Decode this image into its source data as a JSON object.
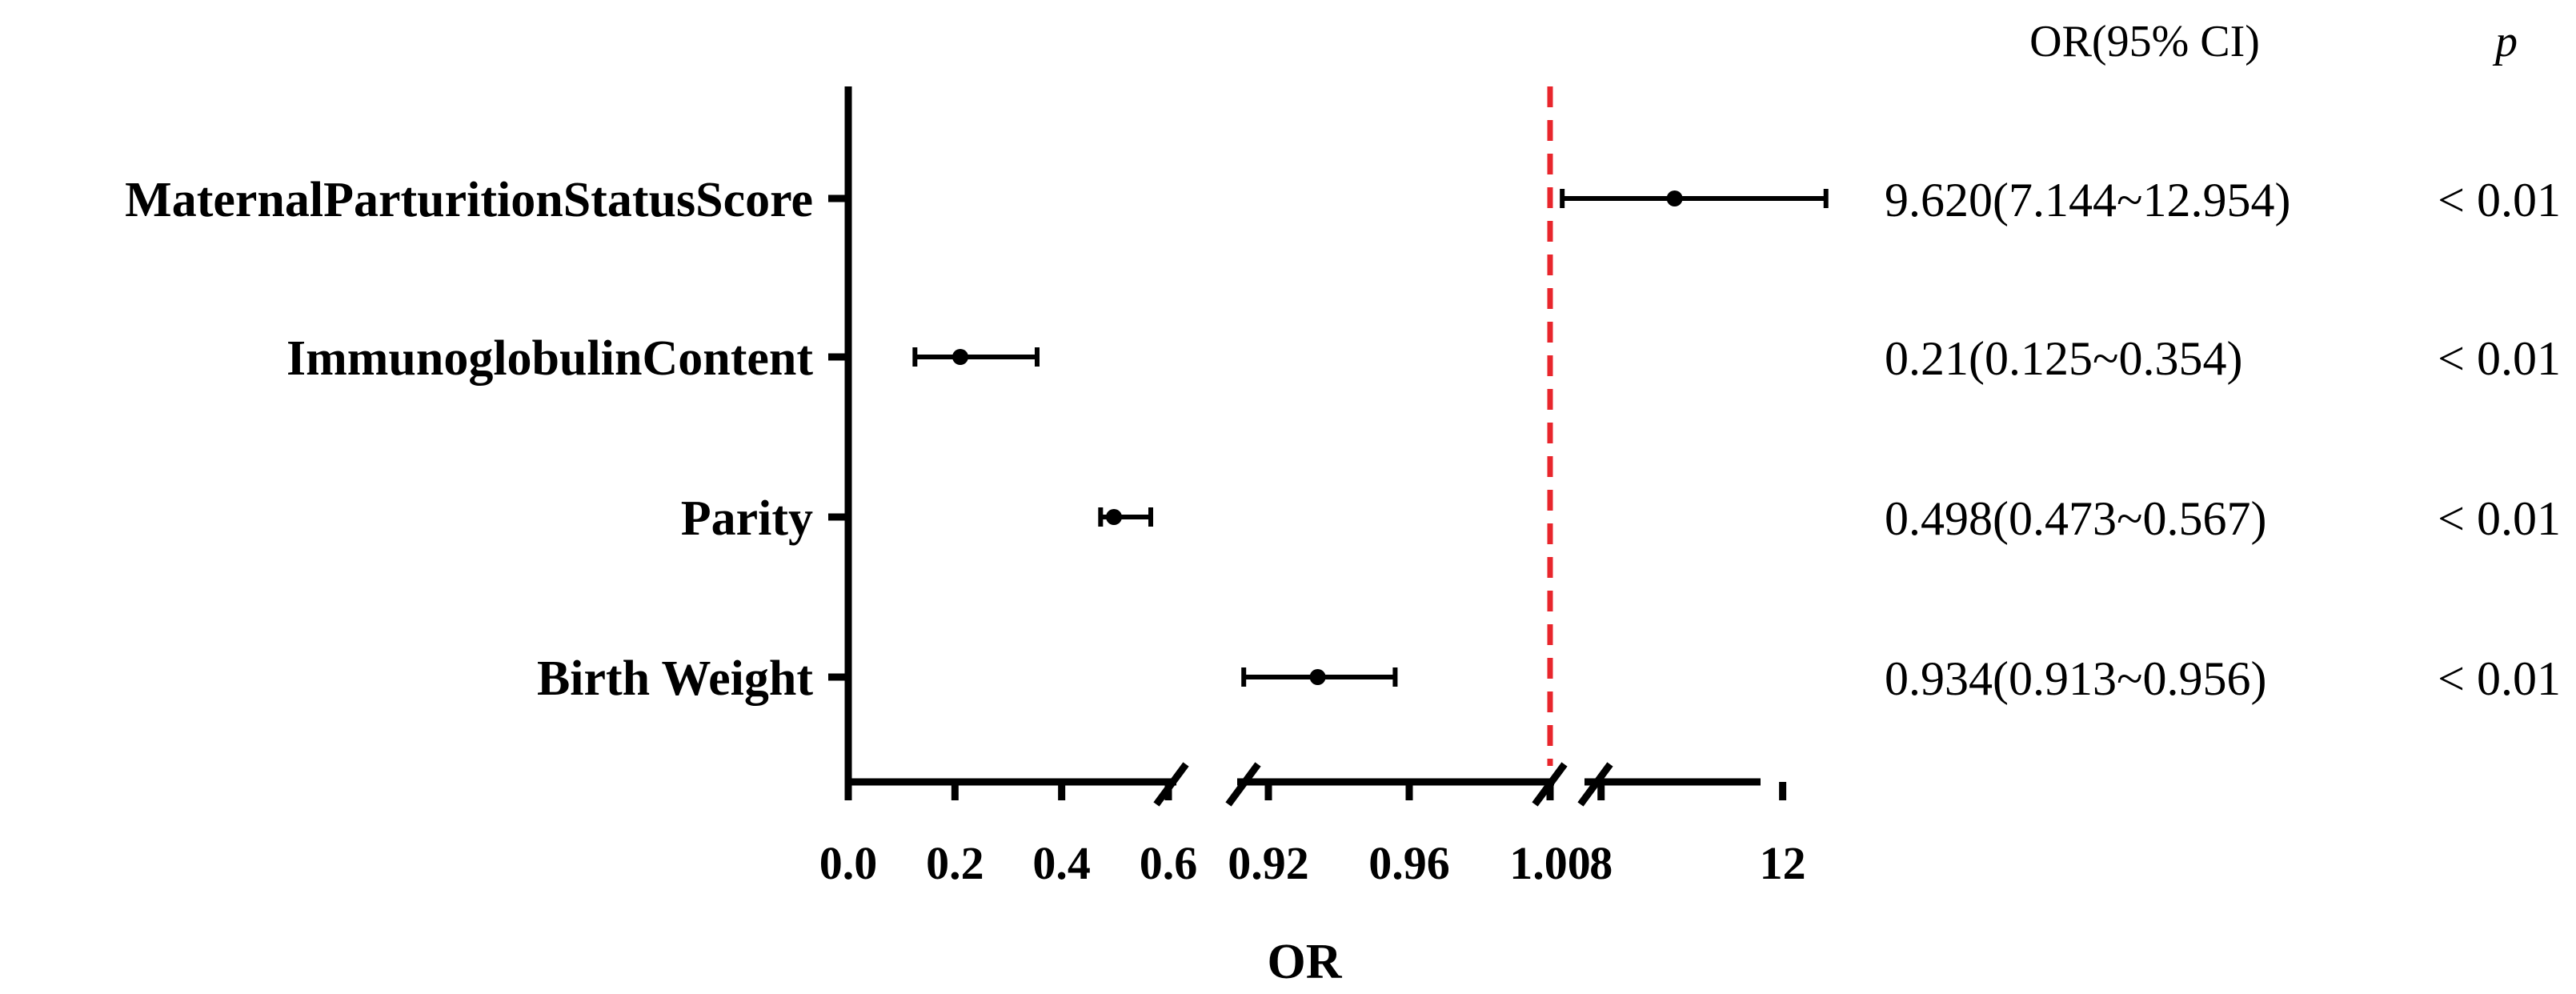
{
  "chart_data": {
    "type": "forest",
    "xlabel": "OR",
    "column_headers": {
      "or_ci": "OR(95% CI)",
      "p": "p"
    },
    "reference_line": {
      "value": 1.0,
      "color": "#e8262c",
      "style": "dashed"
    },
    "x_segments": [
      {
        "range": [
          0.0,
          0.6
        ],
        "ticks": [
          "0.0",
          "0.2",
          "0.4",
          "0.6"
        ],
        "tick_values": [
          0.0,
          0.2,
          0.4,
          0.6
        ]
      },
      {
        "range": [
          0.9,
          1.0
        ],
        "ticks": [
          "0.92",
          "0.96",
          "1.00"
        ],
        "tick_values": [
          0.92,
          0.96,
          1.0
        ]
      },
      {
        "range": [
          7.0,
          12.5
        ],
        "ticks": [
          "8",
          "12"
        ],
        "tick_values": [
          8,
          12
        ]
      }
    ],
    "rows": [
      {
        "label": "MaternalParturitionStatusScore",
        "segment": 2,
        "or": 9.62,
        "lower": 7.144,
        "upper": 12.954,
        "or_ci_text": "9.620(7.144~12.954)",
        "p_text": "< 0.01"
      },
      {
        "label": "ImmunoglobulinContent",
        "segment": 0,
        "or": 0.21,
        "lower": 0.125,
        "upper": 0.354,
        "or_ci_text": "0.21(0.125~0.354)",
        "p_text": "< 0.01"
      },
      {
        "label": "Parity",
        "segment": 0,
        "or": 0.498,
        "lower": 0.473,
        "upper": 0.567,
        "or_ci_text": "0.498(0.473~0.567)",
        "p_text": "< 0.01"
      },
      {
        "label": "Birth Weight",
        "segment": 1,
        "or": 0.934,
        "lower": 0.913,
        "upper": 0.956,
        "or_ci_text": "0.934(0.913~0.956)",
        "p_text": "< 0.01"
      }
    ]
  }
}
